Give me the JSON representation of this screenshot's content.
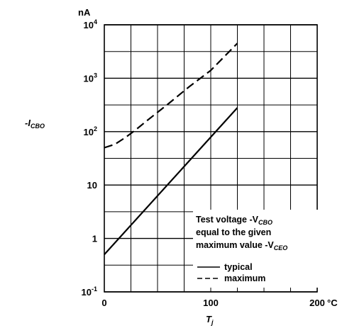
{
  "chart_data": {
    "type": "line",
    "y_scale": "log",
    "xlim": [
      0,
      200
    ],
    "ylim": [
      0.1,
      10000
    ],
    "x_tick_labels": [
      "0",
      "100",
      "200"
    ],
    "x_unit": "°C",
    "y_tick_labels": [
      {
        "base": "10",
        "exp": "-1"
      },
      {
        "base": "1",
        "exp": ""
      },
      {
        "base": "10",
        "exp": ""
      },
      {
        "base": "10",
        "exp": "2"
      },
      {
        "base": "10",
        "exp": "3"
      },
      {
        "base": "10",
        "exp": "4"
      }
    ],
    "y_unit": "nA",
    "ylabel_main": "-I",
    "ylabel_sub": "CBO",
    "xlabel_main": "T",
    "xlabel_sub": "j",
    "grid": true,
    "annotation": {
      "line1_text": "Test voltage -V",
      "line1_sub": "CBO",
      "line2_text": "equal to the given",
      "line3_text": "maximum value -V",
      "line3_sub": "CEO"
    },
    "series": [
      {
        "name": "typical",
        "style": "solid",
        "x": [
          0,
          125
        ],
        "y": [
          0.5,
          280
        ]
      },
      {
        "name": "maximum",
        "style": "dashed",
        "x": [
          0,
          10,
          20,
          30,
          40,
          60,
          80,
          100,
          125
        ],
        "y": [
          50,
          58,
          78,
          110,
          160,
          330,
          700,
          1400,
          4500
        ]
      }
    ]
  }
}
